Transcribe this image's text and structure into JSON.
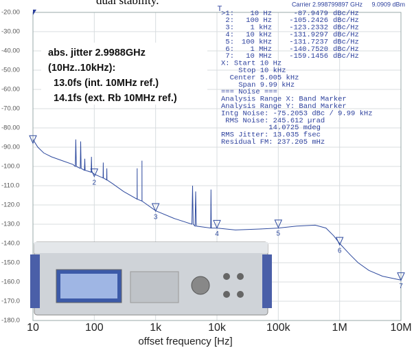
{
  "caption": "dual stability.",
  "chart_data": {
    "type": "line",
    "title": "Carrier 2.998799897 GHz",
    "subtitle": "9.0909 dBm",
    "xlabel": "offset frequency [Hz]",
    "log_x": true,
    "grid": true,
    "color": "#2e4a9e",
    "xlim": [
      10,
      10000000
    ],
    "xticks": [
      10,
      100,
      {
        "value": 1000,
        "label": "1k"
      },
      {
        "value": 10000,
        "label": "10k"
      },
      {
        "value": 100000,
        "label": "100k"
      },
      {
        "value": 1000000,
        "label": "1M"
      },
      {
        "value": 10000000,
        "label": "10M"
      }
    ],
    "ylim": [
      -180,
      -20
    ],
    "yticks": [
      {
        "value": -20,
        "label": "-20.00"
      },
      {
        "value": -30,
        "label": "-30.00"
      },
      {
        "value": -40,
        "label": "-40.00"
      },
      {
        "value": -50,
        "label": "-50.00"
      },
      {
        "value": -60,
        "label": "-60.00"
      },
      {
        "value": -70,
        "label": "-70.00"
      },
      {
        "value": -80,
        "label": "-80.00"
      },
      {
        "value": -90,
        "label": "-90.00"
      },
      {
        "value": -100,
        "label": "-100.0"
      },
      {
        "value": -110,
        "label": "-110.0"
      },
      {
        "value": -120,
        "label": "-120.0"
      },
      {
        "value": -130,
        "label": "-130.0"
      },
      {
        "value": -140,
        "label": "-140.0"
      },
      {
        "value": -150,
        "label": "-150.0"
      },
      {
        "value": -160,
        "label": "-160.0"
      },
      {
        "value": -170,
        "label": "-170.0"
      },
      {
        "value": -180,
        "label": "-180.0"
      }
    ],
    "x": [
      10,
      12,
      15,
      20,
      30,
      45,
      49,
      50,
      51,
      59,
      60,
      61,
      69,
      70,
      71,
      89,
      90,
      91,
      100,
      139,
      140,
      141,
      159,
      160,
      161,
      200,
      300,
      499,
      500,
      501,
      599,
      600,
      601,
      1000,
      2000,
      3900,
      4000,
      4100,
      4400,
      4500,
      4600,
      7900,
      8000,
      8100,
      10000,
      20000,
      50000,
      100000,
      200000,
      400000,
      600000,
      800000,
      1000000,
      1500000,
      2000000,
      3000000,
      5000000,
      10000000
    ],
    "values": [
      -86,
      -90,
      -93,
      -95,
      -97,
      -99,
      -100,
      -86,
      -100,
      -101,
      -87,
      -101,
      -102,
      -96,
      -102,
      -103,
      -95,
      -103,
      -104,
      -106,
      -98,
      -106,
      -107,
      -101,
      -107,
      -109,
      -113,
      -117,
      -101,
      -117,
      -118,
      -97,
      -118,
      -123,
      -127,
      -130,
      -110,
      -130,
      -131,
      -113,
      -131,
      -132,
      -112,
      -132,
      -132,
      -133,
      -132.5,
      -132,
      -131,
      -130.5,
      -132,
      -136,
      -140,
      -146,
      -150,
      -154,
      -157,
      -159
    ],
    "markers": [
      {
        "id": ">1:",
        "freq": "10 Hz",
        "x": 10,
        "value": -87.9479,
        "value_label": "-87.9479",
        "unit": "dBc/Hz"
      },
      {
        "id": "2:",
        "plot_label": "2",
        "freq": "100 Hz",
        "x": 100,
        "value": -105.2426,
        "value_label": "-105.2426",
        "unit": "dBc/Hz"
      },
      {
        "id": "3:",
        "plot_label": "3",
        "freq": "1 kHz",
        "x": 1000,
        "value": -123.2332,
        "value_label": "-123.2332",
        "unit": "dBc/Hz"
      },
      {
        "id": "4:",
        "plot_label": "4",
        "freq": "10 kHz",
        "x": 10000,
        "value": -131.9297,
        "value_label": "-131.9297",
        "unit": "dBc/Hz"
      },
      {
        "id": "5:",
        "plot_label": "5",
        "freq": "100 kHz",
        "x": 100000,
        "value": -131.7237,
        "value_label": "-131.7237",
        "unit": "dBc/Hz"
      },
      {
        "id": "6:",
        "plot_label": "6",
        "freq": "1 MHz",
        "x": 1000000,
        "value": -140.752,
        "value_label": "-140.7520",
        "unit": "dBc/Hz"
      },
      {
        "id": "7:",
        "plot_label": "7",
        "freq": "10 MHz",
        "x": 10000000,
        "value": -159.1456,
        "value_label": "-159.1456",
        "unit": "dBc/Hz"
      }
    ],
    "info_lines": [
      "X: Start 10 Hz",
      "    Stop 10 kHz",
      "  Center 5.005 kHz",
      "    Span 9.99 kHz",
      "=== Noise ===",
      "Analysis Range X: Band Marker",
      "Analysis Range Y: Band Marker",
      "Intg Noise: -75.2053 dBc / 9.99 kHz",
      " RMS Noise: 245.612 µrad",
      "           14.0725 mdeg",
      "RMS Jitter: 13.035 fsec",
      "Residual FM: 237.205 mHz"
    ],
    "annotations": [
      "abs. jitter 2.9988GHz",
      "(10Hz..10kHz):",
      "13.0fs (int. 10MHz ref.)",
      "14.1fs (ext. Rb 10MHz ref.)"
    ]
  }
}
